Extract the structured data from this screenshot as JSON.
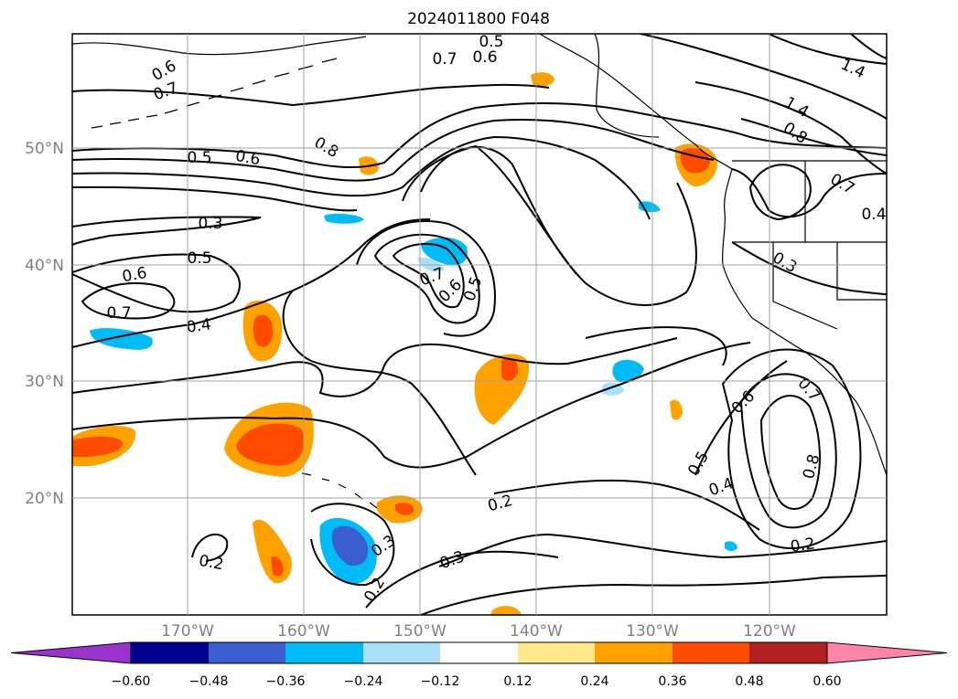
{
  "title": "2024011800 F048",
  "latitude_labels": [
    "50°N",
    "40°N",
    "30°N",
    "20°N"
  ],
  "longitude_labels": [
    "170°W",
    "160°W",
    "150°W",
    "140°W",
    "130°W",
    "120°W"
  ],
  "colorbar": {
    "ticks": [
      "−0.60",
      "−0.48",
      "−0.36",
      "−0.24",
      "−0.12",
      "0.12",
      "0.24",
      "0.36",
      "0.48",
      "0.60"
    ],
    "colors": [
      "#9a33cc",
      "#000090",
      "#3a5ed0",
      "#00bbf5",
      "#aadff8",
      "#ffffff",
      "#ffe98a",
      "#ffa200",
      "#ff4b00",
      "#b02020",
      "#ff85a8"
    ]
  },
  "contour_labels": [
    "0.5",
    "0.7",
    "0.6",
    "0.6",
    "0.7",
    "1.4",
    "1.4",
    "0.8",
    "0.5",
    "0.6",
    "0.8",
    "0.7",
    "0.4",
    "0.3",
    "0.3",
    "0.5",
    "0.6",
    "0.7",
    "0.4",
    "0.7",
    "0.6",
    "0.5",
    "0.6",
    "0.7",
    "0.8",
    "0.5",
    "0.4",
    "0.2",
    "0.2",
    "0.2",
    "0.3",
    "0.2",
    "0.3"
  ]
}
